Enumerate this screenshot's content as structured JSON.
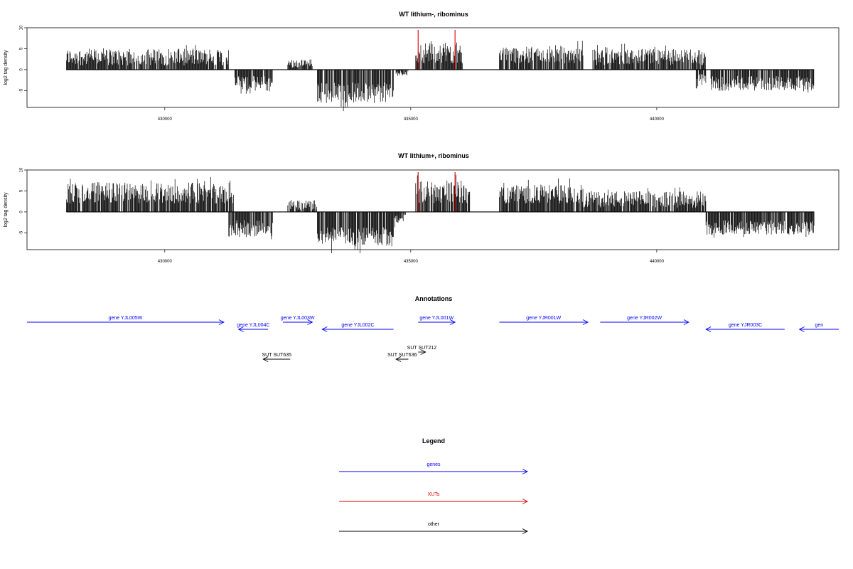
{
  "chart_data": [
    {
      "type": "bar",
      "title": "WT lithium-, ribominus",
      "ylabel": "log2 tag density",
      "ylim": [
        -9,
        10
      ],
      "xlim": [
        427200,
        443700
      ],
      "x_ticks": [
        "430000",
        "435000",
        "440000"
      ],
      "y_ticks": [
        "-5",
        "0",
        "5",
        "10"
      ],
      "color": "#000000",
      "highlight_color": "#dd0000",
      "segments": [
        {
          "from": 428000,
          "to": 431300,
          "lo": 1.0,
          "hi": 5.0
        },
        {
          "from": 431400,
          "to": 432200,
          "lo": -5.2,
          "hi": -1.5
        },
        {
          "from": 432500,
          "to": 433000,
          "lo": 0.5,
          "hi": 2.5
        },
        {
          "from": 433100,
          "to": 434650,
          "lo": -8.0,
          "hi": -3.0
        },
        {
          "from": 434700,
          "to": 434950,
          "lo": -1.5,
          "hi": -0.2
        },
        {
          "from": 435100,
          "to": 436050,
          "lo": 1.5,
          "hi": 6.5
        },
        {
          "from": 436800,
          "to": 438500,
          "lo": 1.5,
          "hi": 5.5
        },
        {
          "from": 438700,
          "to": 441000,
          "lo": 1.0,
          "hi": 5.0
        },
        {
          "from": 440800,
          "to": 441000,
          "lo": -4.5,
          "hi": -1.0
        },
        {
          "from": 441100,
          "to": 443200,
          "lo": -5.0,
          "hi": -1.5
        }
      ],
      "highlights": [
        {
          "x": 435150,
          "y": 9.5
        },
        {
          "x": 435900,
          "y": 9.5
        }
      ]
    },
    {
      "type": "bar",
      "title": "WT lithium+, ribominus",
      "ylabel": "log2 tag density",
      "ylim": [
        -9,
        10
      ],
      "xlim": [
        427200,
        443700
      ],
      "x_ticks": [
        "430000",
        "435000",
        "440000"
      ],
      "y_ticks": [
        "-5",
        "0",
        "5",
        "10"
      ],
      "color": "#000000",
      "highlight_color": "#dd0000",
      "segments": [
        {
          "from": 428000,
          "to": 431400,
          "lo": 2.0,
          "hi": 7.0
        },
        {
          "from": 431300,
          "to": 432200,
          "lo": -6.0,
          "hi": -2.0
        },
        {
          "from": 432500,
          "to": 433100,
          "lo": 0.5,
          "hi": 3.0
        },
        {
          "from": 433100,
          "to": 434650,
          "lo": -8.0,
          "hi": -3.5
        },
        {
          "from": 434650,
          "to": 434900,
          "lo": -3.0,
          "hi": -0.5
        },
        {
          "from": 435100,
          "to": 436200,
          "lo": 2.0,
          "hi": 7.5
        },
        {
          "from": 436800,
          "to": 438500,
          "lo": 2.0,
          "hi": 6.5
        },
        {
          "from": 438500,
          "to": 441000,
          "lo": 1.0,
          "hi": 5.0
        },
        {
          "from": 441000,
          "to": 443200,
          "lo": -5.5,
          "hi": -2.0
        }
      ],
      "highlights": [
        {
          "x": 435150,
          "y": 9.5
        },
        {
          "x": 435900,
          "y": 9.5
        }
      ]
    }
  ],
  "annotations": {
    "title": "Annotations",
    "genes": [
      {
        "label": "gene YJL005W",
        "from": 427200,
        "to": 431200,
        "dir": "right",
        "row": 0
      },
      {
        "label": "gene YJL004C",
        "from": 431500,
        "to": 432100,
        "dir": "left",
        "row": 1
      },
      {
        "label": "gene YJL003W",
        "from": 432400,
        "to": 433000,
        "dir": "right",
        "row": 0
      },
      {
        "label": "gene YJL002C",
        "from": 433200,
        "to": 434650,
        "dir": "left",
        "row": 1
      },
      {
        "label": "gene YJL001W",
        "from": 435150,
        "to": 435900,
        "dir": "right",
        "row": 0
      },
      {
        "label": "gene YJR001W",
        "from": 436800,
        "to": 438600,
        "dir": "right",
        "row": 0
      },
      {
        "label": "gene YJR002W",
        "from": 438850,
        "to": 440650,
        "dir": "right",
        "row": 0
      },
      {
        "label": "gene YJR003C",
        "from": 441000,
        "to": 442600,
        "dir": "left",
        "row": 1
      },
      {
        "label": "gen",
        "from": 442900,
        "to": 443700,
        "dir": "left",
        "row": 1
      }
    ],
    "other": [
      {
        "label": "SUT SUT212",
        "from": 435150,
        "to": 435300,
        "dir": "right",
        "row": 0
      },
      {
        "label": "SUT SUT635",
        "from": 432000,
        "to": 432550,
        "dir": "left",
        "row": 1
      },
      {
        "label": "SUT SUT636",
        "from": 434700,
        "to": 434950,
        "dir": "left",
        "row": 1
      }
    ]
  },
  "legend": {
    "title": "Legend",
    "items": [
      {
        "label": "genes",
        "color": "#0000ff"
      },
      {
        "label": "XUTs",
        "color": "#dd0000"
      },
      {
        "label": "other",
        "color": "#000000"
      }
    ]
  },
  "colors": {
    "gene": "#0000ff",
    "xut": "#dd0000",
    "other": "#000000"
  }
}
